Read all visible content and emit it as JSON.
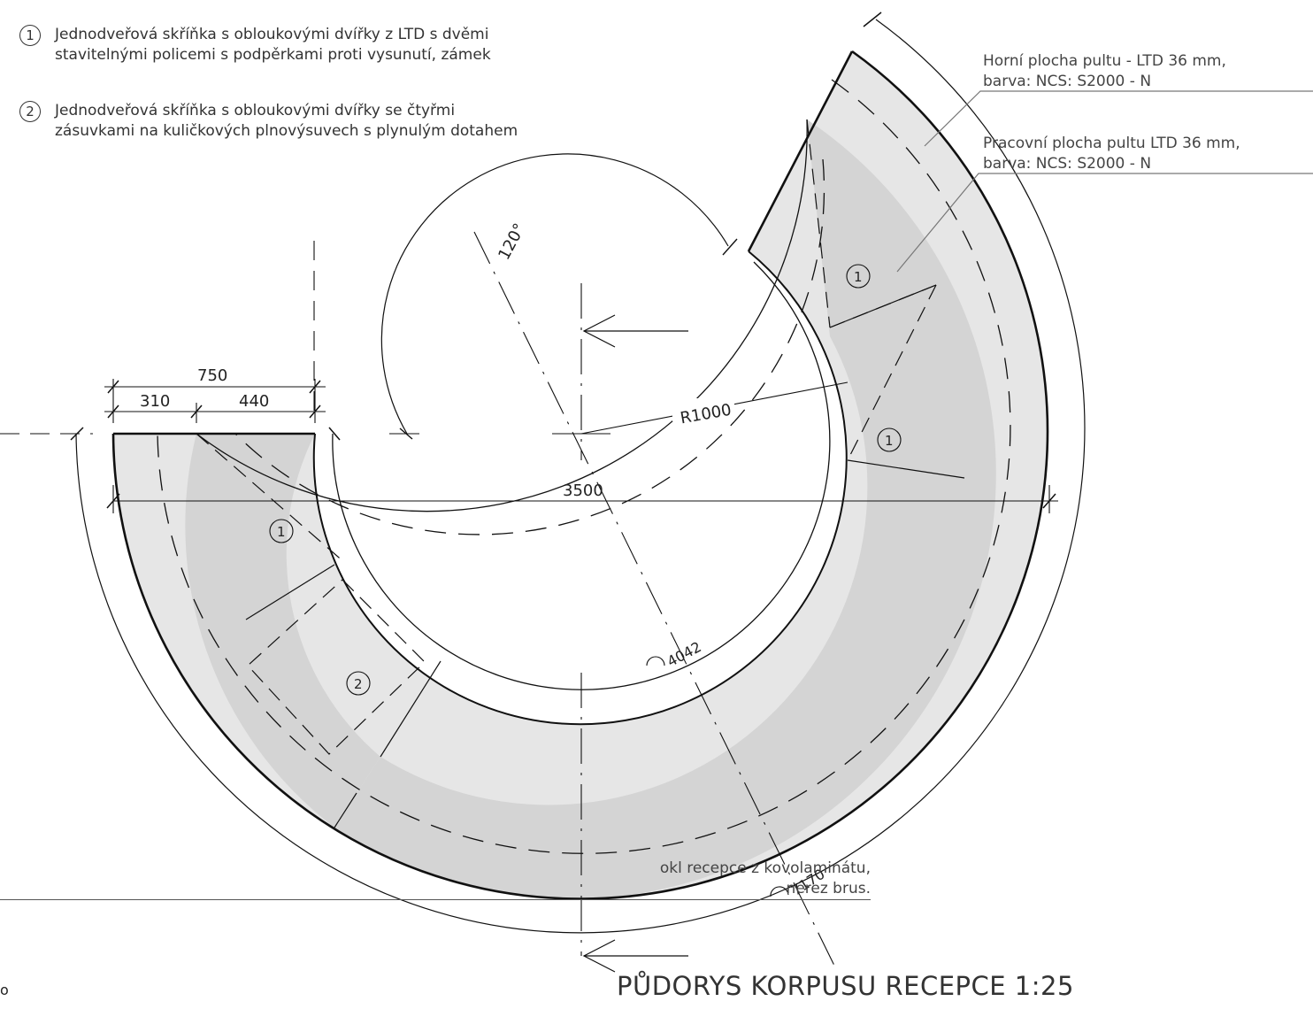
{
  "legend": [
    {
      "num": "1",
      "line1": "Jednodveřová skříňka s obloukovými dvířky z LTD s dvěmi",
      "line2": "stavitelnými policemi s podpěrkami proti vysunutí, zámek"
    },
    {
      "num": "2",
      "line1": "Jednodveřová skříňka s obloukovými dvířky se čtyřmi",
      "line2": "zásuvkami na kuličkových plnovýsuvech s plynulým dotahem"
    }
  ],
  "notes": {
    "top_surface": {
      "line1": "Horní plocha pultu - LTD 36 mm,",
      "line2": "barva: NCS: S2000 - N"
    },
    "work_surface": {
      "line1": "Pracovní plocha pultu LTD 36 mm,",
      "line2": "barva: NCS: S2000 - N"
    },
    "plinth": {
      "line1": "okl recepce z kovolaminátu,",
      "line2": "nerez brus."
    }
  },
  "dimensions": {
    "d750": "750",
    "d310": "310",
    "d440": "440",
    "angle": "120°",
    "radius": "R1000",
    "width": "3500",
    "arc_inner": "4042",
    "arc_outer": "7170"
  },
  "markers": {
    "m1": "1",
    "m2": "2"
  },
  "title": "PŮDORYS KORPUSU  RECEPCE   1:25",
  "stray_mark": "o",
  "colors": {
    "surface": "#e6e6e6",
    "cabinet": "#d4d4d4",
    "line": "#111111",
    "leader": "#777777"
  }
}
